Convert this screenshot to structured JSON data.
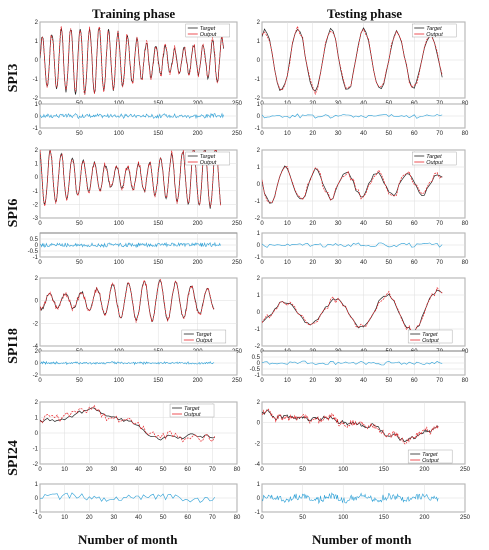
{
  "headers": {
    "left": "Training phase",
    "right": "Testing phase"
  },
  "xlabels": {
    "left": "Number of month",
    "right": "Number of month"
  },
  "legend": {
    "target": "Target",
    "output": "Output"
  },
  "colors": {
    "target": "#222222",
    "output": "#e8262b",
    "error": "#2a9fd6",
    "grid": "#dddddd"
  },
  "chart_data": [
    {
      "type": "line",
      "row": "SPI3",
      "phase": "training",
      "main": {
        "xlim": [
          0,
          250
        ],
        "ylim": [
          -2,
          2
        ],
        "xticks": [
          0,
          50,
          100,
          150,
          200,
          250
        ],
        "yticks": [
          -2,
          -1,
          0,
          1,
          2
        ],
        "n": 234,
        "period": 12,
        "amp": 1.6
      },
      "error": {
        "xlim": [
          0,
          250
        ],
        "ylim": [
          -1,
          1
        ],
        "xticks": [
          0,
          50,
          100,
          150,
          200,
          250
        ],
        "yticks": [
          -1,
          0,
          1
        ]
      }
    },
    {
      "type": "line",
      "row": "SPI3",
      "phase": "testing",
      "main": {
        "xlim": [
          0,
          80
        ],
        "ylim": [
          -2,
          2
        ],
        "xticks": [
          0,
          10,
          20,
          30,
          40,
          50,
          60,
          70,
          80
        ],
        "yticks": [
          -2,
          -1,
          0,
          1,
          2
        ],
        "n": 72,
        "period": 13,
        "amp": 1.5
      },
      "error": {
        "xlim": [
          0,
          80
        ],
        "ylim": [
          -1,
          1
        ],
        "xticks": [
          0,
          10,
          20,
          30,
          40,
          50,
          60,
          70,
          80
        ],
        "yticks": [
          -1,
          0,
          1
        ]
      }
    },
    {
      "type": "line",
      "row": "SPI6",
      "phase": "training",
      "main": {
        "xlim": [
          0,
          250
        ],
        "ylim": [
          -3,
          2
        ],
        "xticks": [
          0,
          50,
          100,
          150,
          200,
          250
        ],
        "yticks": [
          -3,
          -2,
          -1,
          0,
          1,
          2
        ],
        "n": 230,
        "period": 14,
        "amp": 2.0
      },
      "error": {
        "xlim": [
          0,
          250
        ],
        "ylim": [
          -1,
          1
        ],
        "xticks": [
          0,
          50,
          100,
          150,
          200,
          250
        ],
        "yticks": [
          -1,
          -0.5,
          0,
          0.5
        ]
      }
    },
    {
      "type": "line",
      "row": "SPI6",
      "phase": "testing",
      "main": {
        "xlim": [
          0,
          80
        ],
        "ylim": [
          -2,
          2
        ],
        "xticks": [
          0,
          10,
          20,
          30,
          40,
          50,
          60,
          70,
          80
        ],
        "yticks": [
          -2,
          -1,
          0,
          1,
          2
        ],
        "n": 72,
        "period": 12,
        "amp": 1.5
      },
      "error": {
        "xlim": [
          0,
          80
        ],
        "ylim": [
          -1,
          1
        ],
        "xticks": [
          0,
          10,
          20,
          30,
          40,
          50,
          60,
          70,
          80
        ],
        "yticks": [
          -1,
          0,
          1
        ]
      }
    },
    {
      "type": "line",
      "row": "SPI18",
      "phase": "training",
      "main": {
        "xlim": [
          0,
          250
        ],
        "ylim": [
          -4,
          2
        ],
        "xticks": [
          0,
          50,
          100,
          150,
          200,
          250
        ],
        "yticks": [
          -4,
          -2,
          0,
          2
        ],
        "n": 222,
        "period": 20,
        "amp": 1.6
      },
      "error": {
        "xlim": [
          0,
          250
        ],
        "ylim": [
          -2,
          2
        ],
        "xticks": [
          0,
          50,
          100,
          150,
          200,
          250
        ],
        "yticks": [
          -2,
          0,
          2
        ]
      }
    },
    {
      "type": "line",
      "row": "SPI18",
      "phase": "testing",
      "main": {
        "xlim": [
          0,
          80
        ],
        "ylim": [
          -2,
          2
        ],
        "xticks": [
          0,
          10,
          20,
          30,
          40,
          50,
          60,
          70,
          80
        ],
        "yticks": [
          -2,
          -1,
          0,
          1,
          2
        ],
        "n": 72,
        "period": 20,
        "amp": 1.3
      },
      "error": {
        "xlim": [
          0,
          80
        ],
        "ylim": [
          -1,
          1
        ],
        "xticks": [
          0,
          10,
          20,
          30,
          40,
          50,
          60,
          70,
          80
        ],
        "yticks": [
          -1,
          -0.5,
          0,
          0.5
        ]
      }
    },
    {
      "type": "line",
      "row": "SPI24",
      "phase": "training",
      "main": {
        "xlim": [
          0,
          80
        ],
        "ylim": [
          -2,
          2
        ],
        "xticks": [
          0,
          10,
          20,
          30,
          40,
          50,
          60,
          70,
          80
        ],
        "yticks": [
          -2,
          -1,
          0,
          1,
          2
        ],
        "n": 72,
        "period": 0,
        "amp": 1.0
      },
      "error": {
        "xlim": [
          0,
          80
        ],
        "ylim": [
          -1,
          1
        ],
        "xticks": [
          0,
          10,
          20,
          30,
          40,
          50,
          60,
          70,
          80
        ],
        "yticks": [
          -1,
          0,
          1
        ]
      }
    },
    {
      "type": "line",
      "row": "SPI24",
      "phase": "testing",
      "main": {
        "xlim": [
          0,
          250
        ],
        "ylim": [
          -4,
          2
        ],
        "xticks": [
          0,
          50,
          100,
          150,
          200,
          250
        ],
        "yticks": [
          -4,
          -2,
          0,
          2
        ],
        "n": 218,
        "period": 0,
        "amp": 1.0
      },
      "error": {
        "xlim": [
          0,
          250
        ],
        "ylim": [
          -1,
          1
        ],
        "xticks": [
          0,
          50,
          100,
          150,
          200,
          250
        ],
        "yticks": [
          -1,
          0,
          1
        ]
      }
    }
  ],
  "rows": [
    "SPI3",
    "SPI6",
    "SPI18",
    "SPI24"
  ]
}
